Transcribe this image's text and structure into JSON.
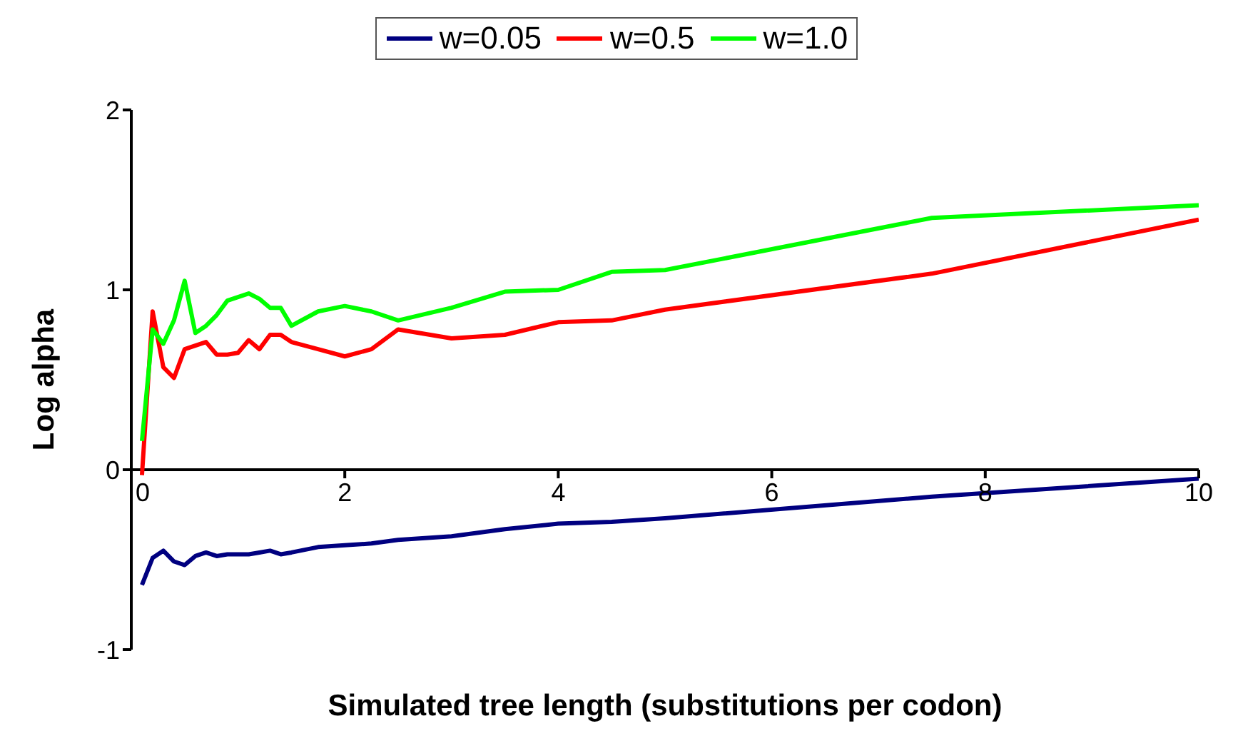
{
  "chart_data": {
    "type": "line",
    "xlabel": "Simulated tree length (substitutions per codon)",
    "ylabel": "Log alpha",
    "x": [
      0.1,
      0.2,
      0.3,
      0.4,
      0.5,
      0.6,
      0.7,
      0.8,
      0.9,
      1.0,
      1.1,
      1.2,
      1.3,
      1.4,
      1.5,
      1.75,
      2.0,
      2.25,
      2.5,
      3,
      3.5,
      4,
      4.5,
      5,
      7.5,
      10
    ],
    "series": [
      {
        "name": "w=0.05",
        "color": "#000080",
        "values": [
          -0.64,
          -0.49,
          -0.45,
          -0.51,
          -0.53,
          -0.48,
          -0.46,
          -0.48,
          -0.47,
          -0.47,
          -0.47,
          -0.46,
          -0.45,
          -0.47,
          -0.46,
          -0.43,
          -0.42,
          -0.41,
          -0.39,
          -0.37,
          -0.33,
          -0.3,
          -0.29,
          -0.27,
          -0.15,
          -0.05
        ]
      },
      {
        "name": "w=0.5",
        "color": "#ff0000",
        "values": [
          -0.03,
          0.88,
          0.57,
          0.51,
          0.67,
          0.69,
          0.71,
          0.64,
          0.64,
          0.65,
          0.72,
          0.67,
          0.75,
          0.75,
          0.71,
          0.67,
          0.63,
          0.67,
          0.78,
          0.73,
          0.75,
          0.82,
          0.83,
          0.89,
          1.09,
          1.39
        ]
      },
      {
        "name": "w=1.0",
        "color": "#00ff00",
        "values": [
          0.16,
          0.78,
          0.7,
          0.83,
          1.05,
          0.76,
          0.8,
          0.86,
          0.94,
          0.96,
          0.98,
          0.95,
          0.9,
          0.9,
          0.8,
          0.88,
          0.91,
          0.88,
          0.83,
          0.9,
          0.99,
          1.0,
          1.1,
          1.11,
          1.4,
          1.47
        ]
      }
    ],
    "xlim": [
      0,
      10
    ],
    "xticks": [
      0,
      2,
      4,
      6,
      8,
      10
    ],
    "ylim": [
      -1,
      2
    ],
    "yticks": [
      -1,
      0,
      1,
      2
    ],
    "grid": false,
    "legend": "top",
    "marker": "none",
    "line_style": "solid"
  }
}
